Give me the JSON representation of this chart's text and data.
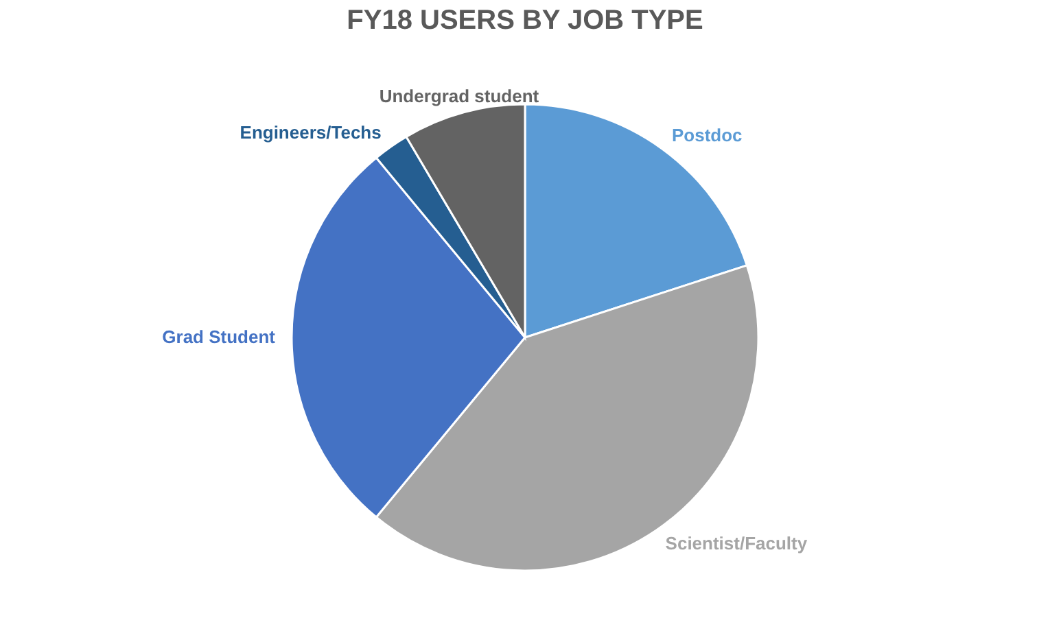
{
  "chart_data": {
    "type": "pie",
    "title": "FY18 USERS BY JOB TYPE",
    "categories": [
      "Postdoc",
      "Scientist/Faculty",
      "Grad Student",
      "Engineers/Techs",
      "Undergrad student"
    ],
    "values": [
      20,
      41,
      28,
      2.5,
      8.5
    ],
    "colors": [
      "#5b9bd5",
      "#a5a5a5",
      "#4472c4",
      "#255e91",
      "#636363"
    ],
    "legend": false
  }
}
